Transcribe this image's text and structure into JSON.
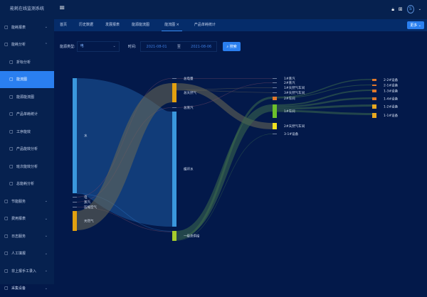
{
  "app": {
    "title": "能耗在线监测系统"
  },
  "sidebar": {
    "items": [
      {
        "label": "能耗报表",
        "icon": "report-icon",
        "chev": "⌄"
      },
      {
        "label": "能耗分析",
        "icon": "analysis-icon",
        "chev": "⌃"
      },
      {
        "label": "折标分析",
        "icon": "circle-icon",
        "sub": true
      },
      {
        "label": "能流图",
        "icon": "flow-icon",
        "sub": true,
        "active": true
      },
      {
        "label": "能源能流图",
        "icon": "energy-icon",
        "sub": true
      },
      {
        "label": "产品单耗统计",
        "icon": "product-icon",
        "sub": true
      },
      {
        "label": "工序能效",
        "icon": "process-icon",
        "sub": true
      },
      {
        "label": "产品能效分析",
        "icon": "info-icon",
        "sub": true
      },
      {
        "label": "班次能效分析",
        "icon": "shift-icon",
        "sub": true
      },
      {
        "label": "总能耗分析",
        "icon": "doc-icon",
        "sub": true
      },
      {
        "label": "节能服务",
        "icon": "save-icon",
        "chev": "⌄"
      },
      {
        "label": "费用报表",
        "icon": "fee-icon",
        "chev": "⌄"
      },
      {
        "label": "日志服务",
        "icon": "log-icon",
        "chev": "⌄"
      },
      {
        "label": "人工填报",
        "icon": "form-icon",
        "chev": "⌄"
      },
      {
        "label": "非上报手工录入",
        "icon": "manual-icon",
        "chev": "⌄"
      },
      {
        "label": "采集设备",
        "icon": "gear-icon",
        "chev": "⌄"
      }
    ]
  },
  "tabs": [
    {
      "label": "首页"
    },
    {
      "label": "历史数据"
    },
    {
      "label": "发展报表"
    },
    {
      "label": "能源能流图"
    },
    {
      "label": "能流图",
      "active": true,
      "close": "×"
    },
    {
      "label": "产品单耗统计"
    }
  ],
  "more_label": "更多",
  "filters": {
    "type_label": "能源类型:",
    "type_value": "电",
    "time_label": "时间:",
    "start": "2021-08-01",
    "to": "至",
    "end": "2021-08-06",
    "search_label": "搜索"
  },
  "chart_data": {
    "type": "sankey",
    "nodes": [
      {
        "name": "水",
        "color": "#3a97dc"
      },
      {
        "name": "电",
        "color": "#8a9bb8"
      },
      {
        "name": "蒸汽",
        "color": "#8a9bb8"
      },
      {
        "name": "压缩空气",
        "color": "#8a9bb8"
      },
      {
        "name": "天然气",
        "color": "#e2a010"
      },
      {
        "name": "总电量",
        "color": "#8a9bb8"
      },
      {
        "name": "总天然气",
        "color": "#e2a010"
      },
      {
        "name": "总蒸汽",
        "color": "#8a9bb8"
      },
      {
        "name": "循环水",
        "color": "#3a97dc"
      },
      {
        "name": "一级总供给",
        "color": "#a6cc2c"
      },
      {
        "name": "1#蒸汽",
        "color": "#8a9bb8"
      },
      {
        "name": "2#蒸汽",
        "color": "#8a9bb8"
      },
      {
        "name": "1#天然气车间",
        "color": "#8a9bb8"
      },
      {
        "name": "3#天然气车间",
        "color": "#8a9bb8"
      },
      {
        "name": "2#车间",
        "color": "#e0782c"
      },
      {
        "name": "1#车间",
        "color": "#6cbf2c"
      },
      {
        "name": "2#天然气车间",
        "color": "#f0e020"
      },
      {
        "name": "3-1#设备",
        "color": "#8a9bb8"
      },
      {
        "name": "2-2#设备",
        "color": "#e0782c"
      },
      {
        "name": "2-1#设备",
        "color": "#e0782c"
      },
      {
        "name": "1-3#设备",
        "color": "#e0782c"
      },
      {
        "name": "1-4#设备",
        "color": "#e0782c"
      },
      {
        "name": "1-2#设备",
        "color": "#e8a820"
      },
      {
        "name": "1-1#设备",
        "color": "#e8a820"
      }
    ],
    "links": [
      {
        "source": "水",
        "target": "循环水",
        "value": 162
      },
      {
        "source": "水",
        "target": "一级总供给",
        "value": 1
      },
      {
        "source": "电",
        "target": "总电量",
        "value": 0.5
      },
      {
        "source": "蒸汽",
        "target": "总蒸汽",
        "value": 0.5
      },
      {
        "source": "压缩空气",
        "target": "一级总供给",
        "value": 0.5
      },
      {
        "source": "天然气",
        "target": "总天然气",
        "value": 27
      },
      {
        "source": "总天然气",
        "target": "2#天然气车间",
        "value": 9
      },
      {
        "source": "总天然气",
        "target": "1#天然气车间",
        "value": 0.5
      },
      {
        "source": "总天然气",
        "target": "3#天然气车间",
        "value": 0.5
      },
      {
        "source": "总电量",
        "target": "1#蒸汽",
        "value": 0.5
      },
      {
        "source": "总蒸汽",
        "target": "2#蒸汽",
        "value": 0.5
      },
      {
        "source": "一级总供给",
        "target": "1#车间",
        "value": 10
      },
      {
        "source": "一级总供给",
        "target": "2#车间",
        "value": 3
      },
      {
        "source": "一级总供给",
        "target": "3-1#设备",
        "value": 0.5
      },
      {
        "source": "2#车间",
        "target": "2-2#设备",
        "value": 1.5
      },
      {
        "source": "2#车间",
        "target": "2-1#设备",
        "value": 1
      },
      {
        "source": "1#车间",
        "target": "1-3#设备",
        "value": 2
      },
      {
        "source": "1#车间",
        "target": "1-4#设备",
        "value": 2.5
      },
      {
        "source": "1#车间",
        "target": "1-2#设备",
        "value": 3
      },
      {
        "source": "1#车间",
        "target": "1-1#设备",
        "value": 3
      }
    ]
  }
}
